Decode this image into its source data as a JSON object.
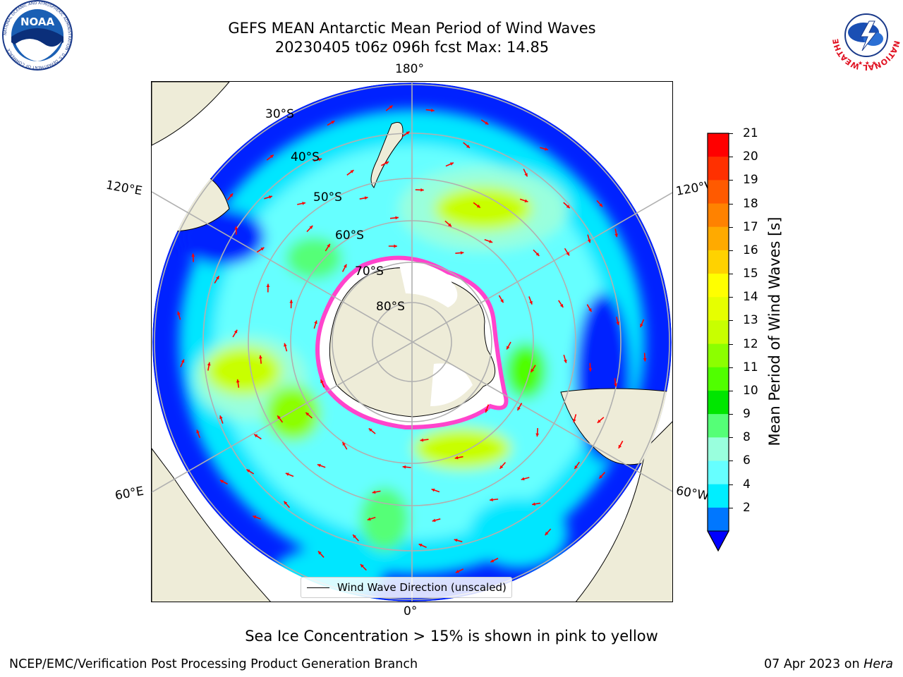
{
  "header": {
    "title_line1": "GEFS MEAN Antarctic Mean Period of Wind Waves",
    "title_line2": "20230405 t06z 096h fcst   Max: 14.85"
  },
  "logos": {
    "noaa_text": "NOAA",
    "noaa_ring_text": "NATIONAL OCEANIC AND ATMOSPHERIC ADMINISTRATION · U.S. DEPARTMENT OF COMMERCE",
    "nws_ring_text": "NATIONAL WEATHER SERVICE"
  },
  "map": {
    "projection": "south-polar-stereographic",
    "lon_labels": {
      "top": "180°",
      "bottom": "0°",
      "upper_left": "120°E",
      "upper_right": "120°W",
      "lower_left": "60°E",
      "lower_right": "60°W"
    },
    "lat_labels": [
      "30°S",
      "40°S",
      "50°S",
      "60°S",
      "70°S",
      "80°S"
    ],
    "legend_label": "Wind Wave Direction (unscaled)",
    "colors": {
      "land": "#eeecd8",
      "grid": "#b0b0b0",
      "arrow": "#ff0000",
      "sea_ice": "#ff44cc"
    }
  },
  "colorbar": {
    "label": "Mean Period of Wind Waves [s]",
    "ticks": [
      "21",
      "20",
      "19",
      "18",
      "17",
      "16",
      "15",
      "14",
      "13",
      "12",
      "11",
      "10",
      "9",
      "8",
      "6",
      "4",
      "2"
    ],
    "colors_top_to_bottom": [
      "#ff0000",
      "#ff3000",
      "#ff5a00",
      "#ff8200",
      "#ffaa00",
      "#ffd200",
      "#ffff00",
      "#e6ff00",
      "#c8ff00",
      "#8cff00",
      "#50ff00",
      "#00e600",
      "#55ff77",
      "#99ffdd",
      "#66ffff",
      "#00eeff",
      "#0077ff"
    ],
    "under_color": "#0000ff",
    "range": [
      2,
      21
    ]
  },
  "footer": {
    "note": "Sea Ice Concentration > 15% is shown in pink to yellow",
    "credit_left": "NCEP/EMC/Verification Post Processing Product Generation Branch",
    "credit_date": "07 Apr 2023 on",
    "credit_host": "Hera"
  }
}
